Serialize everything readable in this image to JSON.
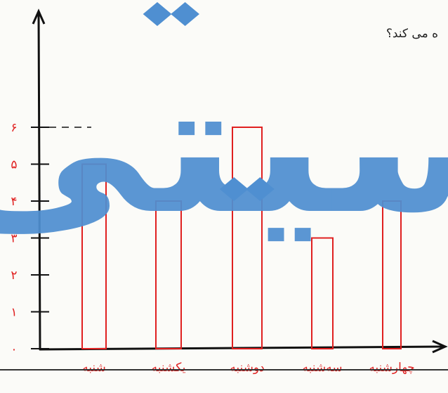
{
  "question_text": "ه می کند؟",
  "watermark": {
    "text": "سیتی",
    "color": "#4f8fd1"
  },
  "chart_data": {
    "type": "bar",
    "categories": [
      "شنبه",
      "یکشنبه",
      "دوشنبه",
      "سه‌شنبه",
      "چهارشنبه"
    ],
    "values": [
      5,
      4,
      6,
      3,
      4
    ],
    "yticks": [
      {
        "value": 0,
        "label": "٠"
      },
      {
        "value": 1,
        "label": "١"
      },
      {
        "value": 2,
        "label": "٢"
      },
      {
        "value": 3,
        "label": "٣"
      },
      {
        "value": 4,
        "label": "۴"
      },
      {
        "value": 5,
        "label": "۵"
      },
      {
        "value": 6,
        "label": "۶"
      }
    ],
    "ylim": [
      0,
      6
    ],
    "title": "",
    "xlabel": "",
    "ylabel": "",
    "bar_color": "#e02020",
    "axis_color": "#111111",
    "grid": false,
    "legend": "none"
  }
}
